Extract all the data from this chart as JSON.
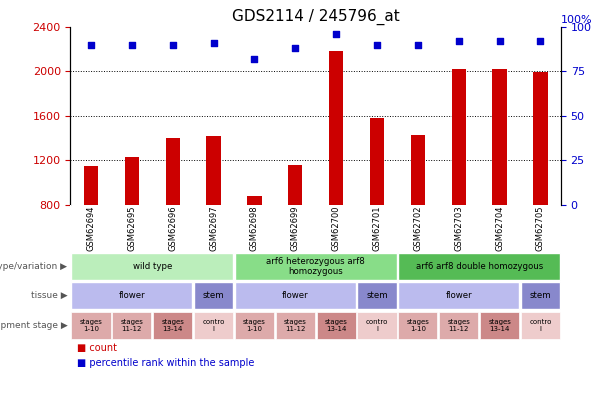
{
  "title": "GDS2114 / 245796_at",
  "samples": [
    "GSM62694",
    "GSM62695",
    "GSM62696",
    "GSM62697",
    "GSM62698",
    "GSM62699",
    "GSM62700",
    "GSM62701",
    "GSM62702",
    "GSM62703",
    "GSM62704",
    "GSM62705"
  ],
  "counts": [
    1150,
    1230,
    1400,
    1420,
    880,
    1160,
    2180,
    1580,
    1430,
    2020,
    2020,
    1990
  ],
  "percentiles": [
    90,
    90,
    90,
    91,
    82,
    88,
    96,
    90,
    90,
    92,
    92,
    92
  ],
  "ylim_left": [
    800,
    2400
  ],
  "ylim_right": [
    0,
    100
  ],
  "yticks_left": [
    800,
    1200,
    1600,
    2000,
    2400
  ],
  "yticks_right": [
    0,
    25,
    50,
    75,
    100
  ],
  "bar_color": "#cc0000",
  "dot_color": "#0000cc",
  "genotype_groups": [
    {
      "label": "wild type",
      "start": 0,
      "end": 4,
      "color": "#bbeebb"
    },
    {
      "label": "arf6 heterozygous arf8\nhomozygous",
      "start": 4,
      "end": 8,
      "color": "#88dd88"
    },
    {
      "label": "arf6 arf8 double homozygous",
      "start": 8,
      "end": 12,
      "color": "#55bb55"
    }
  ],
  "tissue_groups": [
    {
      "label": "flower",
      "start": 0,
      "end": 3,
      "color": "#bbbbee"
    },
    {
      "label": "stem",
      "start": 3,
      "end": 4,
      "color": "#8888cc"
    },
    {
      "label": "flower",
      "start": 4,
      "end": 7,
      "color": "#bbbbee"
    },
    {
      "label": "stem",
      "start": 7,
      "end": 8,
      "color": "#8888cc"
    },
    {
      "label": "flower",
      "start": 8,
      "end": 11,
      "color": "#bbbbee"
    },
    {
      "label": "stem",
      "start": 11,
      "end": 12,
      "color": "#8888cc"
    }
  ],
  "stage_groups": [
    {
      "label": "stages\n1-10",
      "start": 0,
      "end": 1,
      "color": "#ddaaaa"
    },
    {
      "label": "stages\n11-12",
      "start": 1,
      "end": 2,
      "color": "#ddaaaa"
    },
    {
      "label": "stages\n13-14",
      "start": 2,
      "end": 3,
      "color": "#cc8888"
    },
    {
      "label": "contro\nl",
      "start": 3,
      "end": 4,
      "color": "#eecccc"
    },
    {
      "label": "stages\n1-10",
      "start": 4,
      "end": 5,
      "color": "#ddaaaa"
    },
    {
      "label": "stages\n11-12",
      "start": 5,
      "end": 6,
      "color": "#ddaaaa"
    },
    {
      "label": "stages\n13-14",
      "start": 6,
      "end": 7,
      "color": "#cc8888"
    },
    {
      "label": "contro\nl",
      "start": 7,
      "end": 8,
      "color": "#eecccc"
    },
    {
      "label": "stages\n1-10",
      "start": 8,
      "end": 9,
      "color": "#ddaaaa"
    },
    {
      "label": "stages\n11-12",
      "start": 9,
      "end": 10,
      "color": "#ddaaaa"
    },
    {
      "label": "stages\n13-14",
      "start": 10,
      "end": 11,
      "color": "#cc8888"
    },
    {
      "label": "contro\nl",
      "start": 11,
      "end": 12,
      "color": "#eecccc"
    }
  ],
  "row_labels": [
    "genotype/variation",
    "tissue",
    "development stage"
  ],
  "legend_items": [
    {
      "label": "count",
      "color": "#cc0000"
    },
    {
      "label": "percentile rank within the sample",
      "color": "#0000cc"
    }
  ],
  "bg_color": "#ffffff",
  "grid_color": "#000000",
  "axis_label_color_left": "#cc0000",
  "axis_label_color_right": "#0000cc",
  "xticklabel_bg": "#cccccc"
}
